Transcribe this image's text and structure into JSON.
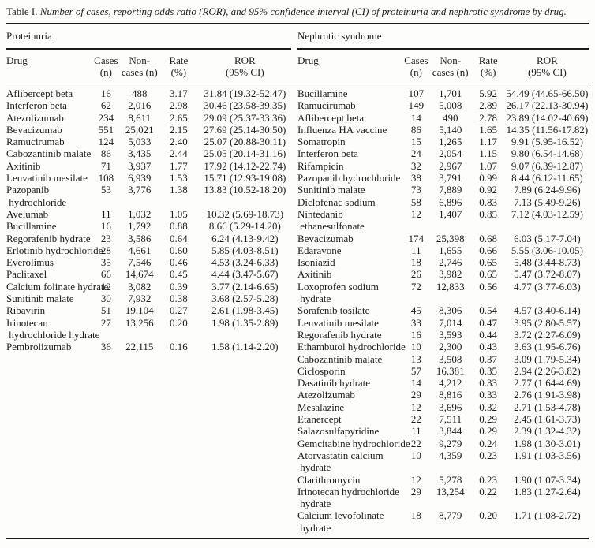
{
  "table": {
    "label": "Table I.",
    "caption": "Number of cases, reporting odds ratio (ROR), and 95% confidence interval (CI) of proteinuria and nephrotic syndrome by drug.",
    "columns": {
      "drug": "Drug",
      "cases_l1": "Cases",
      "cases_l2": "(n)",
      "noncases_l1": "Non-",
      "noncases_l2": "cases (n)",
      "rate_l1": "Rate",
      "rate_l2": "(%)",
      "ror_l1": "ROR",
      "ror_l2": "(95% CI)"
    },
    "sections": [
      {
        "name": "Proteinuria",
        "rows": [
          [
            "Aflibercept beta",
            "16",
            "488",
            "3.17",
            "31.84 (19.32-52.47)"
          ],
          [
            "Interferon beta",
            "62",
            "2,016",
            "2.98",
            "30.46 (23.58-39.35)"
          ],
          [
            "Atezolizumab",
            "234",
            "8,611",
            "2.65",
            "29.09 (25.37-33.36)"
          ],
          [
            "Bevacizumab",
            "551",
            "25,021",
            "2.15",
            "27.69 (25.14-30.50)"
          ],
          [
            "Ramucirumab",
            "124",
            "5,033",
            "2.40",
            "25.07 (20.88-30.11)"
          ],
          [
            "Cabozantinib malate",
            "86",
            "3,435",
            "2.44",
            "25.05 (20.14-31.16)"
          ],
          [
            "Axitinib",
            "71",
            "3,937",
            "1.77",
            "17.92 (14.12-22.74)"
          ],
          [
            "Lenvatinib mesilate",
            "108",
            "6,939",
            "1.53",
            "15.71 (12.93-19.08)"
          ],
          [
            "Pazopanib\n hydrochloride",
            "53",
            "3,776",
            "1.38",
            "13.83 (10.52-18.20)"
          ],
          [
            "Avelumab",
            "11",
            "1,032",
            "1.05",
            "10.32 (5.69-18.73)"
          ],
          [
            "Bucillamine",
            "16",
            "1,792",
            "0.88",
            "8.66 (5.29-14.20)"
          ],
          [
            "Regorafenib hydrate",
            "23",
            "3,586",
            "0.64",
            "6.24 (4.13-9.42)"
          ],
          [
            "Erlotinib hydrochloride",
            "28",
            "4,661",
            "0.60",
            "5.85 (4.03-8.51)"
          ],
          [
            "Everolimus",
            "35",
            "7,546",
            "0.46",
            "4.53 (3.24-6.33)"
          ],
          [
            "Paclitaxel",
            "66",
            "14,674",
            "0.45",
            "4.44 (3.47-5.67)"
          ],
          [
            "Calcium folinate hydrate",
            "12",
            "3,082",
            "0.39",
            "3.77 (2.14-6.65)"
          ],
          [
            "Sunitinib malate",
            "30",
            "7,932",
            "0.38",
            "3.68 (2.57-5.28)"
          ],
          [
            "Ribavirin",
            "51",
            "19,104",
            "0.27",
            "2.61 (1.98-3.45)"
          ],
          [
            "Irinotecan\n hydrochloride hydrate",
            "27",
            "13,256",
            "0.20",
            "1.98 (1.35-2.89)"
          ],
          [
            "Pembrolizumab",
            "36",
            "22,115",
            "0.16",
            "1.58 (1.14-2.20)"
          ]
        ]
      },
      {
        "name": "Nephrotic syndrome",
        "rows": [
          [
            "Bucillamine",
            "107",
            "1,701",
            "5.92",
            "54.49 (44.65-66.50)"
          ],
          [
            "Ramucirumab",
            "149",
            "5,008",
            "2.89",
            "26.17 (22.13-30.94)"
          ],
          [
            "Aflibercept beta",
            "14",
            "490",
            "2.78",
            "23.89 (14.02-40.69)"
          ],
          [
            "Influenza HA vaccine",
            "86",
            "5,140",
            "1.65",
            "14.35 (11.56-17.82)"
          ],
          [
            "Somatropin",
            "15",
            "1,265",
            "1.17",
            "9.91 (5.95-16.52)"
          ],
          [
            "Interferon beta",
            "24",
            "2,054",
            "1.15",
            "9.80 (6.54-14.68)"
          ],
          [
            "Rifampicin",
            "32",
            "2,967",
            "1.07",
            "9.07 (6.39-12.87)"
          ],
          [
            "Pazopanib hydrochloride",
            "38",
            "3,791",
            "0.99",
            "8.44 (6.12-11.65)"
          ],
          [
            "Sunitinib malate",
            "73",
            "7,889",
            "0.92",
            "7.89 (6.24-9.96)"
          ],
          [
            "Diclofenac sodium",
            "58",
            "6,896",
            "0.83",
            "7.13 (5.49-9.26)"
          ],
          [
            "Nintedanib\n ethanesulfonate",
            "12",
            "1,407",
            "0.85",
            "7.12 (4.03-12.59)"
          ],
          [
            "Bevacizumab",
            "174",
            "25,398",
            "0.68",
            "6.03 (5.17-7.04)"
          ],
          [
            "Edaravone",
            "11",
            "1,655",
            "0.66",
            "5.55 (3.06-10.05)"
          ],
          [
            "Isoniazid",
            "18",
            "2,746",
            "0.65",
            "5.48 (3.44-8.73)"
          ],
          [
            "Axitinib",
            "26",
            "3,982",
            "0.65",
            "5.47 (3.72-8.07)"
          ],
          [
            "Loxoprofen sodium\n hydrate",
            "72",
            "12,833",
            "0.56",
            "4.77 (3.77-6.03)"
          ],
          [
            "Sorafenib tosilate",
            "45",
            "8,306",
            "0.54",
            "4.57 (3.40-6.14)"
          ],
          [
            "Lenvatinib mesilate",
            "33",
            "7,014",
            "0.47",
            "3.95 (2.80-5.57)"
          ],
          [
            "Regorafenib hydrate",
            "16",
            "3,593",
            "0.44",
            "3.72 (2.27-6.09)"
          ],
          [
            "Ethambutol hydrochloride",
            "10",
            "2,300",
            "0.43",
            "3.63 (1.95-6.76)"
          ],
          [
            "Cabozantinib malate",
            "13",
            "3,508",
            "0.37",
            "3.09 (1.79-5.34)"
          ],
          [
            "Ciclosporin",
            "57",
            "16,381",
            "0.35",
            "2.94 (2.26-3.82)"
          ],
          [
            "Dasatinib hydrate",
            "14",
            "4,212",
            "0.33",
            "2.77 (1.64-4.69)"
          ],
          [
            "Atezolizumab",
            "29",
            "8,816",
            "0.33",
            "2.76 (1.91-3.98)"
          ],
          [
            "Mesalazine",
            "12",
            "3,696",
            "0.32",
            "2.71 (1.53-4.78)"
          ],
          [
            "Etanercept",
            "22",
            "7,511",
            "0.29",
            "2.45 (1.61-3.73)"
          ],
          [
            "Salazosulfapyridine",
            "11",
            "3,844",
            "0.29",
            "2.39 (1.32-4.32)"
          ],
          [
            "Gemcitabine hydrochloride",
            "22",
            "9,279",
            "0.24",
            "1.98 (1.30-3.01)"
          ],
          [
            "Atorvastatin calcium\n hydrate",
            "10",
            "4,359",
            "0.23",
            "1.91 (1.03-3.56)"
          ],
          [
            "Clarithromycin",
            "12",
            "5,278",
            "0.23",
            "1.90 (1.07-3.34)"
          ],
          [
            "Irinotecan hydrochloride\n hydrate",
            "29",
            "13,254",
            "0.22",
            "1.83 (1.27-2.64)"
          ],
          [
            "Calcium levofolinate\n hydrate",
            "18",
            "8,779",
            "0.20",
            "1.71 (1.08-2.72)"
          ]
        ]
      }
    ]
  }
}
